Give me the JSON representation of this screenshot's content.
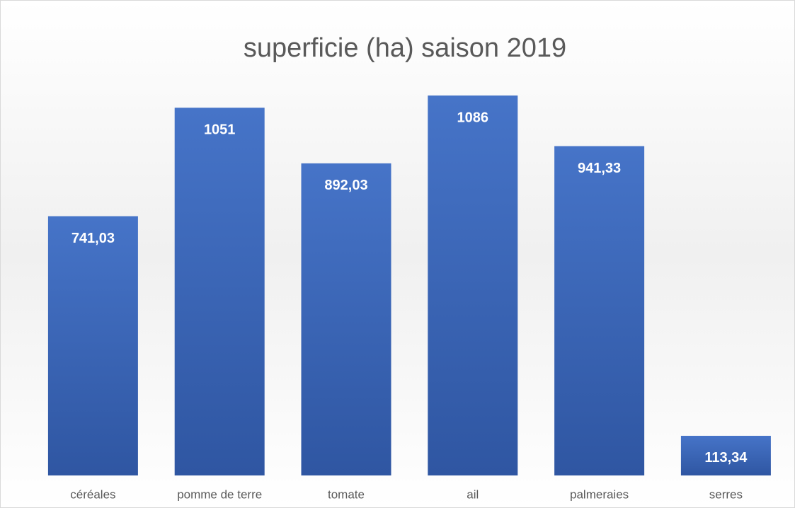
{
  "chart_data": {
    "type": "bar",
    "title": "superficie (ha) saison 2019",
    "categories": [
      "céréales",
      "pomme de terre",
      "tomate",
      "ail",
      "palmeraies",
      "serres"
    ],
    "values": [
      741.03,
      1051,
      892.03,
      1086,
      941.33,
      113.34
    ],
    "value_labels": [
      "741,03",
      "1051",
      "892,03",
      "1086",
      "941,33",
      "113,34"
    ],
    "color": "#4472c4"
  }
}
